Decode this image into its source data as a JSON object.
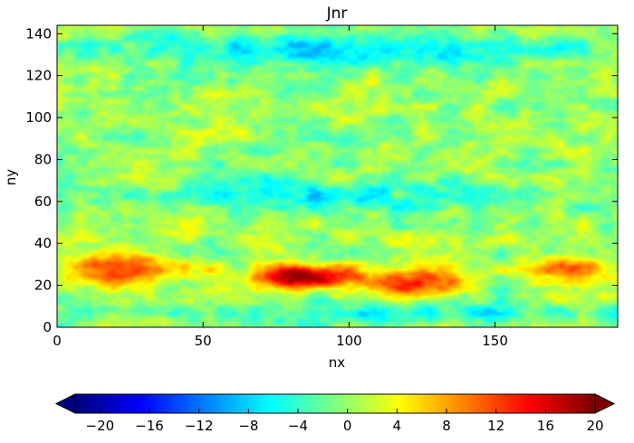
{
  "chart_data": {
    "type": "heatmap",
    "title": "Jnr",
    "xlabel": "nx",
    "ylabel": "ny",
    "xlim": [
      0,
      192
    ],
    "ylim": [
      0,
      144
    ],
    "xticks": [
      0,
      50,
      100,
      150
    ],
    "yticks": [
      0,
      20,
      40,
      60,
      80,
      100,
      120,
      140
    ],
    "colormap": "jet",
    "colorbar": {
      "orientation": "horizontal",
      "placement": "bottom",
      "vmin": -22,
      "vmax": 20,
      "extend": "both",
      "ticks": [
        -20,
        -16,
        -12,
        -8,
        -4,
        0,
        4,
        8,
        12,
        16,
        20
      ]
    },
    "grid": false,
    "field_features": [
      {
        "label": "strong positive band",
        "nx_range": [
          65,
          105
        ],
        "ny_range": [
          18,
          30
        ],
        "value": 20
      },
      {
        "label": "positive band west",
        "nx_range": [
          0,
          45
        ],
        "ny_range": [
          20,
          36
        ],
        "value": 14
      },
      {
        "label": "positive band east",
        "nx_range": [
          110,
          140
        ],
        "ny_range": [
          14,
          28
        ],
        "value": 15
      },
      {
        "label": "positive band far east",
        "nx_range": [
          160,
          192
        ],
        "ny_range": [
          22,
          34
        ],
        "value": 12
      },
      {
        "label": "negative band north",
        "nx_range": [
          10,
          190
        ],
        "ny_range": [
          125,
          140
        ],
        "value": -8
      },
      {
        "label": "negative band mid",
        "nx_range": [
          20,
          170
        ],
        "ny_range": [
          55,
          70
        ],
        "value": -6
      },
      {
        "label": "negative band south",
        "nx_range": [
          0,
          192
        ],
        "ny_range": [
          2,
          12
        ],
        "value": -6
      }
    ]
  }
}
